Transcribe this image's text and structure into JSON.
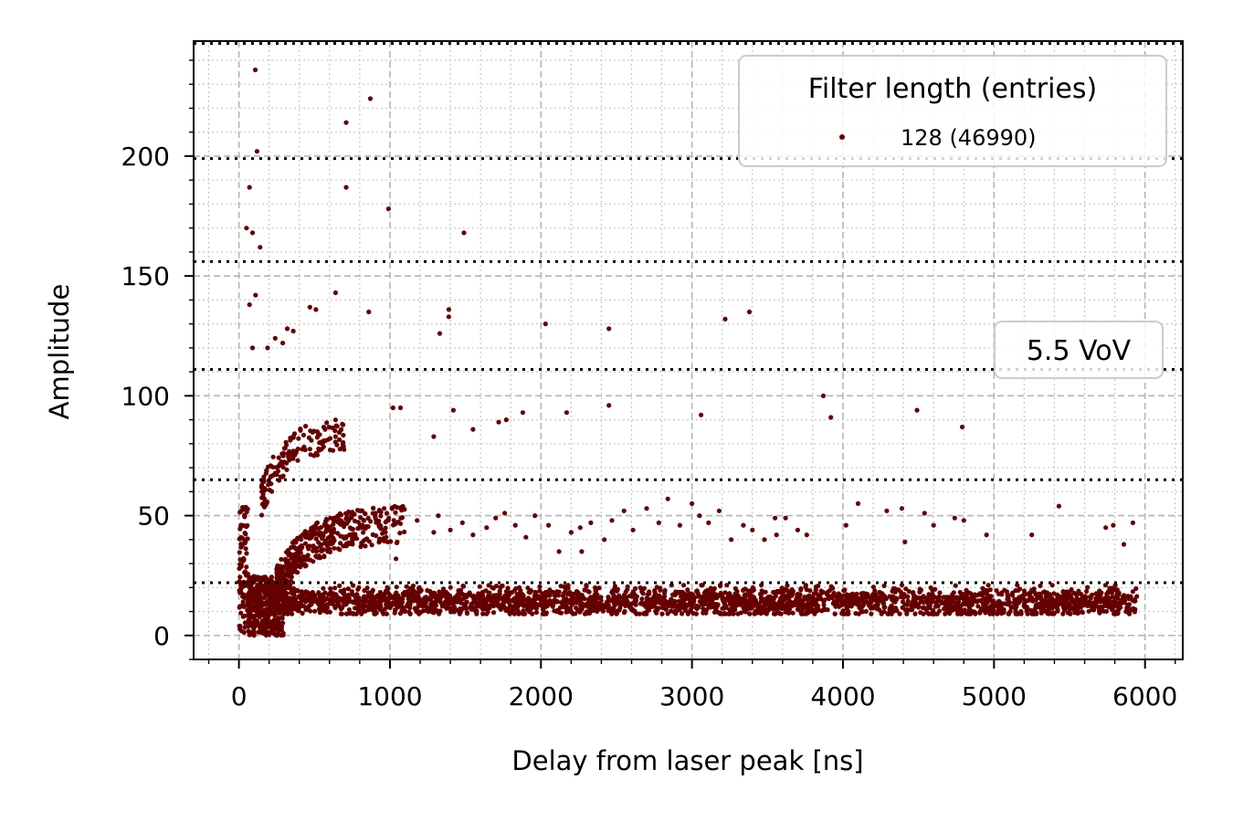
{
  "chart_data": {
    "type": "scatter",
    "xlabel": "Delay from laser peak [ns]",
    "ylabel": "Amplitude",
    "xlim": [
      -300,
      6250
    ],
    "ylim": [
      -10,
      248
    ],
    "xticks": [
      0,
      1000,
      2000,
      3000,
      4000,
      5000,
      6000
    ],
    "yticks": [
      0,
      50,
      100,
      150,
      200
    ],
    "grid": "major dashed + minor dotted",
    "legend": {
      "title": "Filter length (entries)",
      "placement": "top-right",
      "entries": [
        "128 (46990)"
      ]
    },
    "annotation": "5.5 VoV",
    "threshold_lines": [
      22,
      65,
      111,
      156,
      199,
      247
    ],
    "colors": {
      "points": "#640000",
      "threshold": "#000000"
    },
    "series": [
      {
        "name": "128 (46990)",
        "n_points": 46990,
        "main_band": {
          "x_range": [
            200,
            5950
          ],
          "amplitude_range": [
            9,
            21
          ],
          "center": 14
        },
        "early_cluster": {
          "x_range": [
            0,
            300
          ],
          "amplitude_range": [
            0,
            55
          ]
        },
        "single_pe_band": {
          "x_range": [
            250,
            1100
          ],
          "amplitude_from": [
            22,
            55
          ]
        },
        "double_pe_band": {
          "x_range": [
            150,
            700
          ],
          "amplitude_from": [
            60,
            92
          ]
        },
        "outliers": [
          [
            108,
            236
          ],
          [
            870,
            224
          ],
          [
            120,
            202
          ],
          [
            710,
            214
          ],
          [
            70,
            187
          ],
          [
            710,
            187
          ],
          [
            990,
            178
          ],
          [
            1490,
            168
          ],
          [
            50,
            170
          ],
          [
            90,
            168
          ],
          [
            140,
            162
          ],
          [
            640,
            143
          ],
          [
            110,
            142
          ],
          [
            70,
            138
          ],
          [
            860,
            135
          ],
          [
            1390,
            136
          ],
          [
            1390,
            133
          ],
          [
            3380,
            135
          ],
          [
            3220,
            132
          ],
          [
            2030,
            130
          ],
          [
            2450,
            128
          ],
          [
            1330,
            126
          ],
          [
            470,
            137
          ],
          [
            510,
            136
          ],
          [
            320,
            128
          ],
          [
            360,
            127
          ],
          [
            240,
            124
          ],
          [
            290,
            122
          ],
          [
            190,
            120
          ],
          [
            90,
            120
          ],
          [
            3870,
            100
          ],
          [
            3920,
            91
          ],
          [
            4490,
            94
          ],
          [
            4790,
            87
          ],
          [
            3060,
            92
          ],
          [
            2450,
            96
          ],
          [
            2170,
            93
          ],
          [
            1880,
            93
          ],
          [
            1770,
            90
          ],
          [
            1550,
            86
          ],
          [
            1420,
            94
          ],
          [
            1290,
            83
          ],
          [
            1020,
            95
          ],
          [
            1070,
            95
          ],
          [
            1720,
            89
          ]
        ],
        "scatter_points": [
          [
            1180,
            48
          ],
          [
            1290,
            43
          ],
          [
            1320,
            50
          ],
          [
            1400,
            44
          ],
          [
            1480,
            47
          ],
          [
            1550,
            42
          ],
          [
            1640,
            45
          ],
          [
            1700,
            49
          ],
          [
            1760,
            51
          ],
          [
            1830,
            46
          ],
          [
            1900,
            41
          ],
          [
            1960,
            50
          ],
          [
            2050,
            46
          ],
          [
            2120,
            35
          ],
          [
            2200,
            43
          ],
          [
            2260,
            45
          ],
          [
            2330,
            47
          ],
          [
            2420,
            40
          ],
          [
            2470,
            48
          ],
          [
            2550,
            52
          ],
          [
            2610,
            44
          ],
          [
            2700,
            53
          ],
          [
            2780,
            47
          ],
          [
            2840,
            57
          ],
          [
            2920,
            46
          ],
          [
            3000,
            55
          ],
          [
            3050,
            50
          ],
          [
            3110,
            47
          ],
          [
            3180,
            52
          ],
          [
            3260,
            40
          ],
          [
            3340,
            46
          ],
          [
            3400,
            44
          ],
          [
            3480,
            40
          ],
          [
            3550,
            49
          ],
          [
            3620,
            49
          ],
          [
            3700,
            44
          ],
          [
            3760,
            42
          ],
          [
            4020,
            46
          ],
          [
            4100,
            55
          ],
          [
            4290,
            52
          ],
          [
            4390,
            53
          ],
          [
            4410,
            39
          ],
          [
            4540,
            51
          ],
          [
            4600,
            46
          ],
          [
            4740,
            49
          ],
          [
            4800,
            48
          ],
          [
            4950,
            42
          ],
          [
            5250,
            42
          ],
          [
            5430,
            54
          ],
          [
            5740,
            45
          ],
          [
            5790,
            46
          ],
          [
            5860,
            38
          ],
          [
            5920,
            47
          ],
          [
            1040,
            32
          ],
          [
            2270,
            35
          ],
          [
            3560,
            42
          ]
        ]
      }
    ]
  }
}
